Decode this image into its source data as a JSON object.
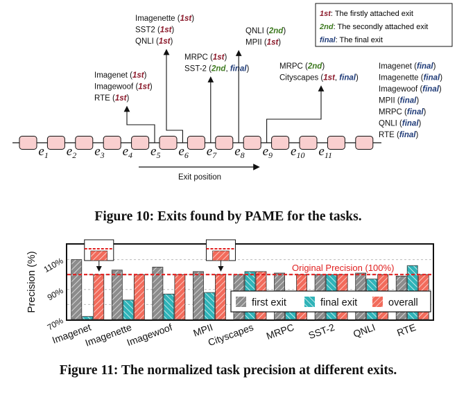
{
  "figure10": {
    "caption": "Figure 10: Exits found by PAME for the tasks.",
    "legend": [
      {
        "tag": "1st",
        "text": ": The firstly attached exit",
        "kind": "first"
      },
      {
        "tag": "2nd",
        "text": ": The secondly attached exit",
        "kind": "second"
      },
      {
        "tag": "final",
        "text": ": The final exit",
        "kind": "final"
      }
    ],
    "exit_axis_label": "Exit position",
    "exits": [
      "1",
      "2",
      "3",
      "4",
      "5",
      "6",
      "7",
      "8",
      "9",
      "10",
      "11"
    ],
    "annotations": [
      {
        "exit": "5",
        "lines": [
          [
            {
              "t": "Imagenet ("
            },
            {
              "t": "1st",
              "k": "first"
            },
            {
              "t": ")"
            }
          ],
          [
            {
              "t": "Imagewoof ("
            },
            {
              "t": "1st",
              "k": "first"
            },
            {
              "t": ")"
            }
          ],
          [
            {
              "t": "RTE ("
            },
            {
              "t": "1st",
              "k": "first"
            },
            {
              "t": ")"
            }
          ]
        ]
      },
      {
        "exit": "6",
        "lines": [
          [
            {
              "t": "Imagenette ("
            },
            {
              "t": "1st",
              "k": "first"
            },
            {
              "t": ")"
            }
          ],
          [
            {
              "t": "SST2 ("
            },
            {
              "t": "1st",
              "k": "first"
            },
            {
              "t": ")"
            }
          ],
          [
            {
              "t": "QNLI ("
            },
            {
              "t": "1st",
              "k": "first"
            },
            {
              "t": ")"
            }
          ]
        ]
      },
      {
        "exit": "7",
        "lines": [
          [
            {
              "t": "MRPC ("
            },
            {
              "t": "1st",
              "k": "first"
            },
            {
              "t": ")"
            }
          ],
          [
            {
              "t": "SST-2 ("
            },
            {
              "t": "2nd",
              "k": "second"
            },
            {
              "t": ", "
            },
            {
              "t": "final",
              "k": "final"
            },
            {
              "t": ")"
            }
          ]
        ]
      },
      {
        "exit": "8",
        "lines": [
          [
            {
              "t": "QNLI ("
            },
            {
              "t": "2nd",
              "k": "second"
            },
            {
              "t": ")"
            }
          ],
          [
            {
              "t": "MPII ("
            },
            {
              "t": "1st",
              "k": "first"
            },
            {
              "t": ")"
            }
          ]
        ]
      },
      {
        "exit": "9",
        "lines": [
          [
            {
              "t": "MRPC ("
            },
            {
              "t": "2nd",
              "k": "second"
            },
            {
              "t": ")"
            }
          ],
          [
            {
              "t": "Cityscapes ("
            },
            {
              "t": "1st",
              "k": "first"
            },
            {
              "t": ", "
            },
            {
              "t": "final",
              "k": "final"
            },
            {
              "t": ")"
            }
          ]
        ]
      },
      {
        "exit": "12",
        "lines": [
          [
            {
              "t": "Imagenet ("
            },
            {
              "t": "final",
              "k": "final"
            },
            {
              "t": ")"
            }
          ],
          [
            {
              "t": "Imagenette ("
            },
            {
              "t": "final",
              "k": "final"
            },
            {
              "t": ")"
            }
          ],
          [
            {
              "t": "Imagewoof ("
            },
            {
              "t": "final",
              "k": "final"
            },
            {
              "t": ")"
            }
          ],
          [
            {
              "t": "MPII ("
            },
            {
              "t": "final",
              "k": "final"
            },
            {
              "t": ")"
            }
          ],
          [
            {
              "t": "MRPC ("
            },
            {
              "t": "final",
              "k": "final"
            },
            {
              "t": ")"
            }
          ],
          [
            {
              "t": "QNLI ("
            },
            {
              "t": "final",
              "k": "final"
            },
            {
              "t": ")"
            }
          ],
          [
            {
              "t": "RTE ("
            },
            {
              "t": "final",
              "k": "final"
            },
            {
              "t": ")"
            }
          ]
        ]
      }
    ]
  },
  "figure11": {
    "caption": "Figure 11: The normalized task precision at different exits."
  },
  "colors": {
    "first": "#8b1a2b",
    "second": "#3d7a1f",
    "final": "#1f3b78",
    "node_fill": "#f9cfcf",
    "bar_first": "#8c8c8c",
    "bar_final": "#2fb3b8",
    "bar_overall": "#f26b5b",
    "reference_line": "#e02020"
  },
  "chart_data": {
    "type": "bar",
    "ylabel": "Precision (%)",
    "yticks": [
      "70%",
      "90%",
      "110%"
    ],
    "ylim": [
      70,
      120
    ],
    "categories": [
      "Imagenet",
      "Imagenette",
      "Imagewoof",
      "MPII",
      "Cityscapes",
      "MRPC",
      "SST-2",
      "QNLI",
      "RTE"
    ],
    "series": [
      {
        "name": "first exit",
        "values": [
          110,
          103,
          105,
          102,
          100,
          101,
          100,
          101,
          99
        ]
      },
      {
        "name": "final exit",
        "values": [
          72,
          83,
          87,
          88,
          102,
          80,
          100,
          97,
          106
        ]
      },
      {
        "name": "overall",
        "values": [
          100,
          100,
          100,
          100,
          102,
          100,
          100,
          100,
          100
        ]
      }
    ],
    "reference": {
      "label": "Original Precision (100%)",
      "value": 100
    },
    "legend_position": "bottom-right",
    "grid": true
  }
}
